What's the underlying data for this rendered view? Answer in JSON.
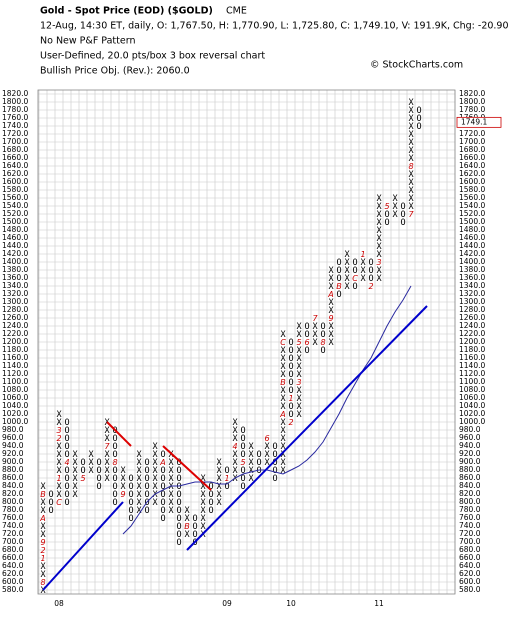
{
  "chart_data": {
    "type": "pnf",
    "title": "Gold - Spot Price (EOD) ($GOLD)",
    "exchange": "CME",
    "info_line": "12-Aug, 14:30 ET, daily, O: 1,767.50, H: 1,770.90, L: 1,725.80, C: 1,749.10, V: 191.9K, Chg: -20.90",
    "pattern": "No New P&F Pattern",
    "settings_line": "User-Defined, 20.0 pts/box 3 box reversal chart",
    "objective": "Bullish Price Obj. (Rev.): 2060.0",
    "copyright": "© StockCharts.com",
    "ylim": [
      580,
      1820
    ],
    "yticks": [
      {
        "value": 580,
        "label": "580.0"
      },
      {
        "value": 600,
        "label": "600.0"
      },
      {
        "value": 620,
        "label": "620.0"
      },
      {
        "value": 640,
        "label": "640.0"
      },
      {
        "value": 660,
        "label": "660.0"
      },
      {
        "value": 680,
        "label": "680.0"
      },
      {
        "value": 700,
        "label": "700.0"
      },
      {
        "value": 720,
        "label": "720.0"
      },
      {
        "value": 740,
        "label": "740.0"
      },
      {
        "value": 760,
        "label": "760.0"
      },
      {
        "value": 780,
        "label": "780.0"
      },
      {
        "value": 800,
        "label": "800.0"
      },
      {
        "value": 820,
        "label": "820.0"
      },
      {
        "value": 840,
        "label": "840.0"
      },
      {
        "value": 860,
        "label": "860.0"
      },
      {
        "value": 880,
        "label": "880.0"
      },
      {
        "value": 900,
        "label": "900.0"
      },
      {
        "value": 920,
        "label": "920.0"
      },
      {
        "value": 940,
        "label": "940.0"
      },
      {
        "value": 960,
        "label": "960.0"
      },
      {
        "value": 980,
        "label": "980.0"
      },
      {
        "value": 1000,
        "label": "1000.0"
      },
      {
        "value": 1020,
        "label": "1020.0"
      },
      {
        "value": 1040,
        "label": "1040.0"
      },
      {
        "value": 1060,
        "label": "1060.0"
      },
      {
        "value": 1080,
        "label": "1080.0"
      },
      {
        "value": 1100,
        "label": "1100.0"
      },
      {
        "value": 1120,
        "label": "1120.0"
      },
      {
        "value": 1140,
        "label": "1140.0"
      },
      {
        "value": 1160,
        "label": "1160.0"
      },
      {
        "value": 1180,
        "label": "1180.0"
      },
      {
        "value": 1200,
        "label": "1200.0"
      },
      {
        "value": 1220,
        "label": "1220.0"
      },
      {
        "value": 1240,
        "label": "1240.0"
      },
      {
        "value": 1260,
        "label": "1260.0"
      },
      {
        "value": 1280,
        "label": "1280.0"
      },
      {
        "value": 1300,
        "label": "1300.0"
      },
      {
        "value": 1320,
        "label": "1320.0"
      },
      {
        "value": 1340,
        "label": "1340.0"
      },
      {
        "value": 1360,
        "label": "1360.0"
      },
      {
        "value": 1380,
        "label": "1380.0"
      },
      {
        "value": 1400,
        "label": "1400.0"
      },
      {
        "value": 1420,
        "label": "1420.0"
      },
      {
        "value": 1440,
        "label": "1440.0"
      },
      {
        "value": 1460,
        "label": "1460.0"
      },
      {
        "value": 1480,
        "label": "1480.0"
      },
      {
        "value": 1500,
        "label": "1500.0"
      },
      {
        "value": 1520,
        "label": "1520.0"
      },
      {
        "value": 1540,
        "label": "1540.0"
      },
      {
        "value": 1560,
        "label": "1560.0"
      },
      {
        "value": 1580,
        "label": "1580.0"
      },
      {
        "value": 1600,
        "label": "1600.0"
      },
      {
        "value": 1620,
        "label": "1620.0"
      },
      {
        "value": 1640,
        "label": "1640.0"
      },
      {
        "value": 1660,
        "label": "1660.0"
      },
      {
        "value": 1680,
        "label": "1680.0"
      },
      {
        "value": 1700,
        "label": "1700.0"
      },
      {
        "value": 1720,
        "label": "1720.0"
      },
      {
        "value": 1740,
        "label": "1740.0"
      },
      {
        "value": 1760,
        "label": "1760.0"
      },
      {
        "value": 1780,
        "label": "1780.0"
      },
      {
        "value": 1800,
        "label": "1800.0"
      },
      {
        "value": 1820,
        "label": "1820.0"
      }
    ],
    "last_box": 1740,
    "last_price": {
      "value": 1749.1,
      "label": "1749.1"
    },
    "grid": true,
    "x_color": "#000000",
    "o_color": "#000000",
    "month_color": "#cc0000",
    "x_labels": [
      {
        "column": 2,
        "label": "08"
      },
      {
        "column": 23,
        "label": "09"
      },
      {
        "column": 31,
        "label": "10"
      },
      {
        "column": 42,
        "label": "11"
      }
    ],
    "columns": [
      {
        "type": "X",
        "low": 580,
        "high": 840,
        "months": [
          {
            "value": 600,
            "label": "8"
          },
          {
            "value": 660,
            "label": "1"
          },
          {
            "value": 680,
            "label": "2"
          },
          {
            "value": 700,
            "label": "9"
          },
          {
            "value": 760,
            "label": "A"
          },
          {
            "value": 820,
            "label": "B"
          }
        ]
      },
      {
        "type": "O",
        "low": 780,
        "high": 820,
        "months": []
      },
      {
        "type": "X",
        "low": 800,
        "high": 1020,
        "months": [
          {
            "value": 800,
            "label": "C"
          },
          {
            "value": 860,
            "label": "1"
          },
          {
            "value": 960,
            "label": "2"
          },
          {
            "value": 980,
            "label": "3"
          }
        ]
      },
      {
        "type": "O",
        "low": 800,
        "high": 1000,
        "months": [
          {
            "value": 900,
            "label": "4"
          }
        ]
      },
      {
        "type": "X",
        "low": 820,
        "high": 920,
        "months": []
      },
      {
        "type": "O",
        "low": 860,
        "high": 900,
        "months": [
          {
            "value": 860,
            "label": "5"
          }
        ]
      },
      {
        "type": "X",
        "low": 880,
        "high": 920,
        "months": []
      },
      {
        "type": "O",
        "low": 840,
        "high": 900,
        "months": []
      },
      {
        "type": "X",
        "low": 860,
        "high": 1000,
        "months": [
          {
            "value": 940,
            "label": "7"
          }
        ]
      },
      {
        "type": "O",
        "low": 800,
        "high": 980,
        "months": [
          {
            "value": 900,
            "label": "8"
          }
        ]
      },
      {
        "type": "X",
        "low": 820,
        "high": 880,
        "months": [
          {
            "value": 820,
            "label": "9"
          }
        ]
      },
      {
        "type": "O",
        "low": 760,
        "high": 860,
        "months": []
      },
      {
        "type": "X",
        "low": 780,
        "high": 920,
        "months": []
      },
      {
        "type": "O",
        "low": 780,
        "high": 900,
        "months": []
      },
      {
        "type": "X",
        "low": 800,
        "high": 940,
        "months": []
      },
      {
        "type": "O",
        "low": 760,
        "high": 920,
        "months": [
          {
            "value": 900,
            "label": "A"
          }
        ]
      },
      {
        "type": "X",
        "low": 780,
        "high": 920,
        "months": []
      },
      {
        "type": "O",
        "low": 700,
        "high": 900,
        "months": []
      },
      {
        "type": "X",
        "low": 720,
        "high": 780,
        "months": [
          {
            "value": 740,
            "label": "B"
          }
        ]
      },
      {
        "type": "O",
        "low": 700,
        "high": 760,
        "months": []
      },
      {
        "type": "X",
        "low": 720,
        "high": 860,
        "months": []
      },
      {
        "type": "O",
        "low": 780,
        "high": 840,
        "months": []
      },
      {
        "type": "X",
        "low": 800,
        "high": 900,
        "months": []
      },
      {
        "type": "O",
        "low": 840,
        "high": 880,
        "months": [
          {
            "value": 860,
            "label": "1"
          }
        ]
      },
      {
        "type": "X",
        "low": 860,
        "high": 1000,
        "months": [
          {
            "value": 940,
            "label": "4"
          }
        ]
      },
      {
        "type": "O",
        "low": 840,
        "high": 980,
        "months": [
          {
            "value": 900,
            "label": "5"
          }
        ]
      },
      {
        "type": "X",
        "low": 860,
        "high": 940,
        "months": []
      },
      {
        "type": "O",
        "low": 880,
        "high": 920,
        "months": []
      },
      {
        "type": "X",
        "low": 900,
        "high": 960,
        "months": [
          {
            "value": 960,
            "label": "6"
          }
        ]
      },
      {
        "type": "O",
        "low": 860,
        "high": 940,
        "months": []
      },
      {
        "type": "X",
        "low": 880,
        "high": 1220,
        "months": [
          {
            "value": 1020,
            "label": "A"
          },
          {
            "value": 1100,
            "label": "B"
          },
          {
            "value": 1200,
            "label": "C"
          }
        ]
      },
      {
        "type": "O",
        "low": 1000,
        "high": 1200,
        "months": [
          {
            "value": 1060,
            "label": "1"
          },
          {
            "value": 1000,
            "label": "2"
          }
        ]
      },
      {
        "type": "X",
        "low": 1020,
        "high": 1240,
        "months": [
          {
            "value": 1100,
            "label": "3"
          },
          {
            "value": 1200,
            "label": "5"
          }
        ]
      },
      {
        "type": "O",
        "low": 1180,
        "high": 1240,
        "months": [
          {
            "value": 1200,
            "label": "6"
          }
        ]
      },
      {
        "type": "X",
        "low": 1200,
        "high": 1260,
        "months": [
          {
            "value": 1260,
            "label": "7"
          }
        ]
      },
      {
        "type": "O",
        "low": 1180,
        "high": 1240,
        "months": [
          {
            "value": 1200,
            "label": "8"
          }
        ]
      },
      {
        "type": "X",
        "low": 1200,
        "high": 1380,
        "months": [
          {
            "value": 1260,
            "label": "9"
          },
          {
            "value": 1320,
            "label": "A"
          }
        ]
      },
      {
        "type": "O",
        "low": 1320,
        "high": 1400,
        "months": [
          {
            "value": 1340,
            "label": "B"
          }
        ]
      },
      {
        "type": "X",
        "low": 1340,
        "high": 1420,
        "months": []
      },
      {
        "type": "O",
        "low": 1340,
        "high": 1400,
        "months": [
          {
            "value": 1360,
            "label": "C"
          }
        ]
      },
      {
        "type": "X",
        "low": 1360,
        "high": 1420,
        "months": [
          {
            "value": 1420,
            "label": "1"
          }
        ]
      },
      {
        "type": "O",
        "low": 1340,
        "high": 1400,
        "months": [
          {
            "value": 1340,
            "label": "2"
          }
        ]
      },
      {
        "type": "X",
        "low": 1360,
        "high": 1560,
        "months": [
          {
            "value": 1400,
            "label": "3"
          }
        ]
      },
      {
        "type": "O",
        "low": 1500,
        "high": 1540,
        "months": [
          {
            "value": 1540,
            "label": "5"
          }
        ]
      },
      {
        "type": "X",
        "low": 1520,
        "high": 1560,
        "months": []
      },
      {
        "type": "O",
        "low": 1500,
        "high": 1540,
        "months": []
      },
      {
        "type": "X",
        "low": 1520,
        "high": 1800,
        "months": [
          {
            "value": 1520,
            "label": "7"
          },
          {
            "value": 1640,
            "label": "8"
          }
        ]
      },
      {
        "type": "O",
        "low": 1740,
        "high": 1780,
        "months": []
      }
    ],
    "trend_lines": [
      {
        "color": "#0000cc",
        "from": [
          0,
          580
        ],
        "to": [
          10,
          800
        ]
      },
      {
        "color": "#0000cc",
        "from": [
          18,
          680
        ],
        "to": [
          48,
          1290
        ]
      },
      {
        "color": "#dd0000",
        "from": [
          8,
          1000
        ],
        "to": [
          11,
          940
        ]
      },
      {
        "color": "#dd0000",
        "from": [
          15,
          940
        ],
        "to": [
          21,
          830
        ]
      }
    ],
    "moving_average": {
      "color": "#2a2aa0",
      "values": [
        null,
        null,
        null,
        null,
        null,
        null,
        null,
        null,
        null,
        null,
        720,
        740,
        770,
        800,
        820,
        830,
        840,
        840,
        845,
        850,
        850,
        850,
        845,
        845,
        860,
        870,
        875,
        880,
        880,
        875,
        870,
        880,
        890,
        905,
        925,
        950,
        985,
        1020,
        1060,
        1095,
        1130,
        1160,
        1200,
        1240,
        1275,
        1305,
        1340,
        null
      ]
    }
  }
}
